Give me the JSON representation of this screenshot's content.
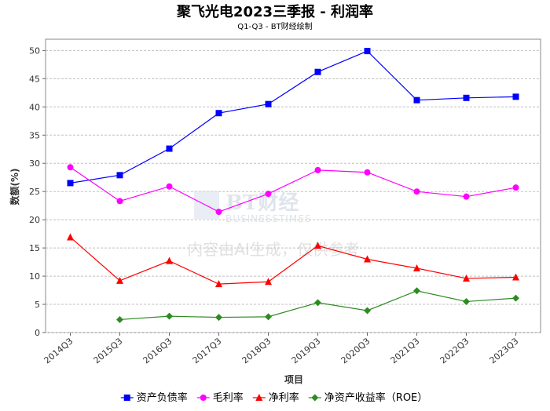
{
  "chart_data": {
    "type": "line",
    "title": "聚飞光电2023三季报 - 利润率",
    "subtitle": "Q1-Q3 - BT财经绘制",
    "xlabel": "项目",
    "ylabel": "数额(%)",
    "ylim": [
      0,
      52
    ],
    "yticks": [
      0,
      5,
      10,
      15,
      20,
      25,
      30,
      35,
      40,
      45,
      50
    ],
    "grid": true,
    "legend_position": "bottom",
    "categories": [
      "2014Q3",
      "2015Q3",
      "2016Q3",
      "2017Q3",
      "2018Q3",
      "2019Q3",
      "2020Q3",
      "2021Q3",
      "2022Q3",
      "2023Q3"
    ],
    "series": [
      {
        "name": "资产负债率",
        "color": "#0000ff",
        "marker": "square",
        "values": [
          26.5,
          27.9,
          32.6,
          38.9,
          40.5,
          46.2,
          49.9,
          41.2,
          41.6,
          41.8
        ]
      },
      {
        "name": "毛利率",
        "color": "#ff00ff",
        "marker": "circle",
        "values": [
          29.3,
          23.3,
          25.9,
          21.4,
          24.6,
          28.8,
          28.4,
          25.0,
          24.1,
          25.7
        ]
      },
      {
        "name": "净利率",
        "color": "#ff0000",
        "marker": "triangle",
        "values": [
          16.9,
          9.2,
          12.7,
          8.6,
          9.0,
          15.4,
          13.0,
          11.4,
          9.6,
          9.8
        ]
      },
      {
        "name": "净资产收益率（ROE）",
        "color": "#2e8b22",
        "marker": "diamond",
        "values": [
          null,
          2.3,
          2.9,
          2.7,
          2.8,
          5.3,
          3.9,
          7.4,
          5.5,
          6.1
        ]
      }
    ]
  },
  "watermark": {
    "logo_text": "BT财经",
    "logo_sub": "BUSINESSTIMES",
    "notice": "内容由AI生成，仅供参考"
  }
}
